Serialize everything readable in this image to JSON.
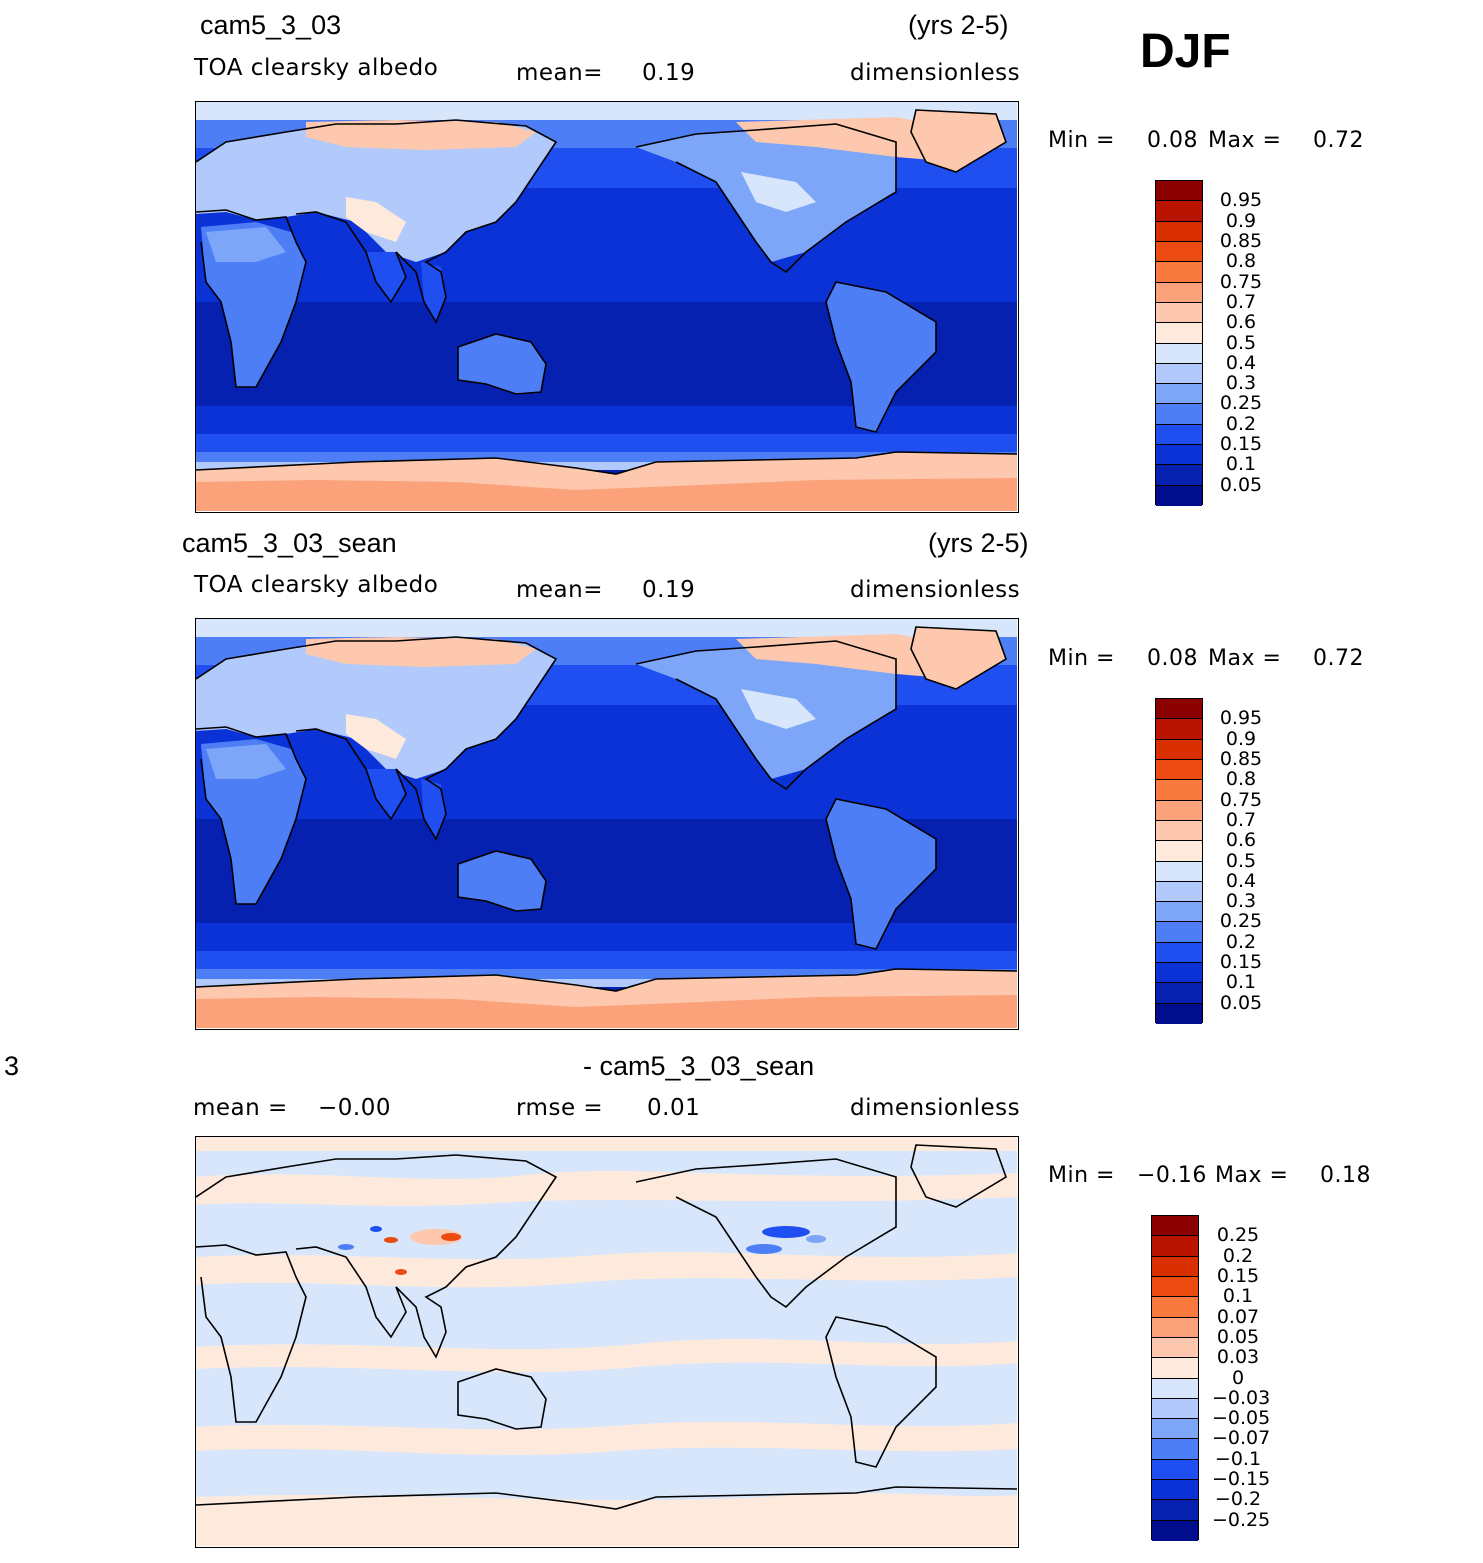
{
  "season": "DJF",
  "panels": [
    {
      "case": "cam5_3_03",
      "years": "(yrs 2-5)",
      "variable": "TOA  clearsky  albedo",
      "mean_label": "mean=",
      "mean_value": "0.19",
      "units": "dimensionless",
      "min_label": "Min  =",
      "min_value": "0.08",
      "max_label": "Max  =",
      "max_value": "0.72",
      "levels": [
        "0.95",
        "0.9",
        "0.85",
        "0.8",
        "0.75",
        "0.7",
        "0.6",
        "0.5",
        "0.4",
        "0.3",
        "0.25",
        "0.2",
        "0.15",
        "0.1",
        "0.05"
      ]
    },
    {
      "case": "cam5_3_03_sean",
      "years": "(yrs 2-5)",
      "variable": "TOA  clearsky  albedo",
      "mean_label": "mean=",
      "mean_value": "0.19",
      "units": "dimensionless",
      "min_label": "Min  =",
      "min_value": "0.08",
      "max_label": "Max  =",
      "max_value": "0.72",
      "levels": [
        "0.95",
        "0.9",
        "0.85",
        "0.8",
        "0.75",
        "0.7",
        "0.6",
        "0.5",
        "0.4",
        "0.3",
        "0.25",
        "0.2",
        "0.15",
        "0.1",
        "0.05"
      ]
    },
    {
      "case_left": "3",
      "case": "- cam5_3_03_sean",
      "mean_label": "mean  =",
      "mean_value": "−0.00",
      "rmse_label": "rmse  =",
      "rmse_value": "0.01",
      "units": "dimensionless",
      "min_label": "Min  =",
      "min_value": "−0.16",
      "max_label": "Max  =",
      "max_value": "0.18",
      "levels": [
        "0.25",
        "0.2",
        "0.15",
        "0.1",
        "0.07",
        "0.05",
        "0.03",
        "0",
        "−0.03",
        "−0.05",
        "−0.07",
        "−0.1",
        "−0.15",
        "−0.2",
        "−0.25"
      ]
    }
  ],
  "colorbar_colors": [
    "#8b0000",
    "#b81400",
    "#d92f00",
    "#eb4b11",
    "#f97a3e",
    "#fba27b",
    "#fdc8ad",
    "#feeadd",
    "#d7e6fb",
    "#b1cafb",
    "#7da6f9",
    "#4d7ef5",
    "#1f4ff0",
    "#0a32d6",
    "#0620b0",
    "#000d8c"
  ]
}
